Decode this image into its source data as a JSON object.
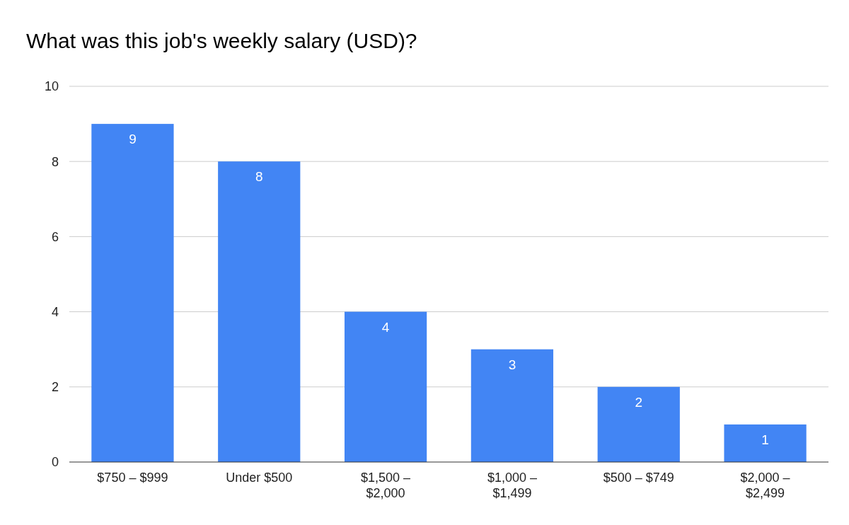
{
  "chart_data": {
    "type": "bar",
    "title": "What was this job's weekly salary (USD)?",
    "categories": [
      "$750 – $999",
      "Under $500",
      "$1,500 – $2,000",
      "$1,000 – $1,499",
      "$500 – $749",
      "$2,000 – $2,499"
    ],
    "values": [
      9,
      8,
      4,
      3,
      2,
      1
    ],
    "color": "#4285f4",
    "ylim": [
      0,
      10
    ],
    "yticks": [
      0,
      2,
      4,
      6,
      8,
      10
    ],
    "grid": true,
    "data_labels": true
  }
}
